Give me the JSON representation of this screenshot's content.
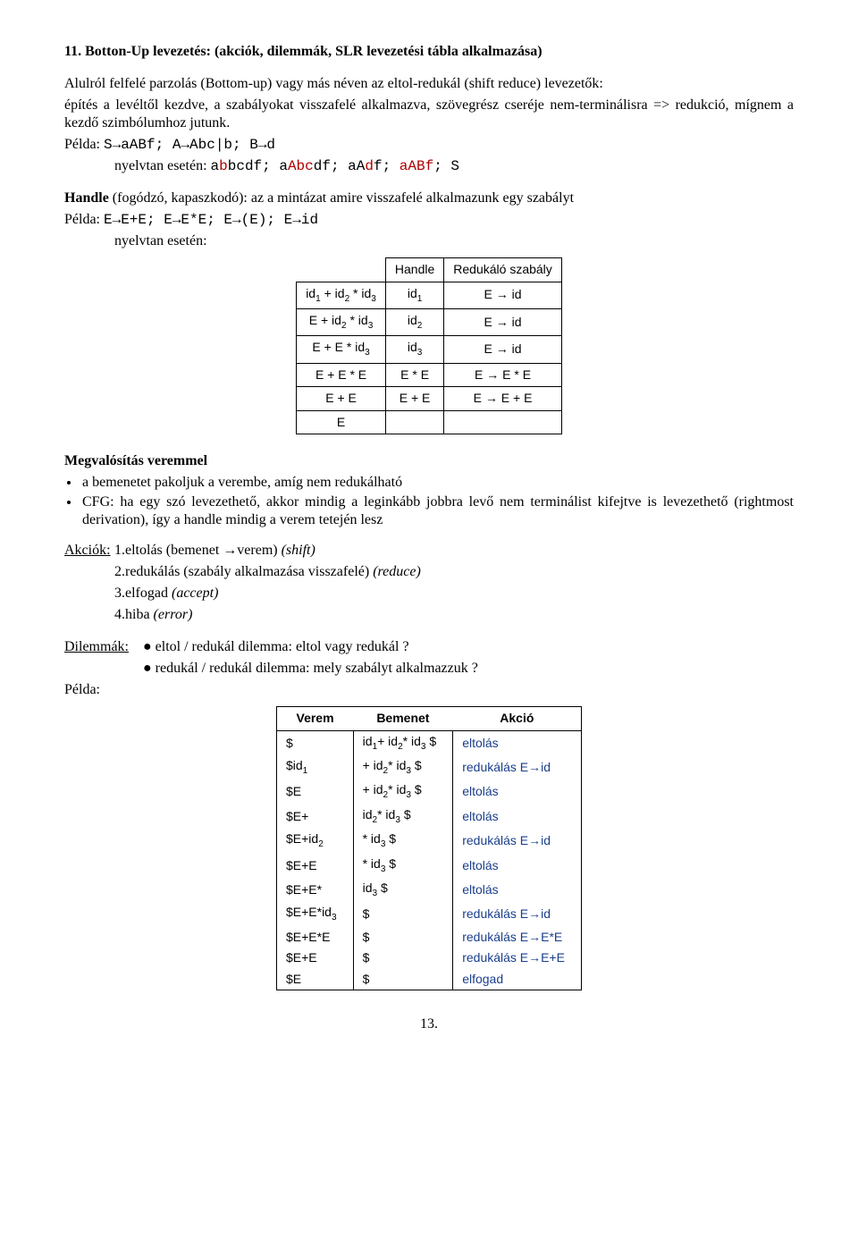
{
  "h1": "11. Botton-Up levezetés: (akciók, dilemmák, SLR levezetési tábla alkalmazása)",
  "p1": "Alulról felfelé parzolás (Bottom-up) vagy más néven az eltol-redukál (shift reduce) levezetők:",
  "p2": "építés a levéltől kezdve, a szabályokat visszafelé alkalmazva, szövegrész cseréje nem-terminálisra => redukció, mígnem a kezdő szimbólumhoz jutunk.",
  "ex1_l": "Példa: ",
  "ex1_r": "S→aABf; A→Abc|b; B→d",
  "ex1_b_l": "nyelvtan esetén: ",
  "ex1_b_r": "abbcdf; aAbcdf; aAdf; aABf; S",
  "handle_b": "Handle",
  "handle_rest": " (fogódzó, kapaszkodó): az a mintázat amire visszafelé alkalmazunk egy szabályt",
  "ex2_l": "Példa: ",
  "ex2_r": "E→E+E; E→E*E; E→(E); E→id",
  "ex2_b": "nyelvtan esetén:",
  "t1": {
    "h2": "Handle",
    "h3": "Redukáló szabály",
    "rows": [
      {
        "a": "id₁ + id₂ * id₃",
        "b": "id₁",
        "c": "E → id"
      },
      {
        "a": "E + id₂ * id₃",
        "b": "id₂",
        "c": "E → id"
      },
      {
        "a": "E + E * id₃",
        "b": "id₃",
        "c": "E → id"
      },
      {
        "a": "E + E * E",
        "b": "E * E",
        "c": "E → E * E"
      },
      {
        "a": "E + E",
        "b": "E + E",
        "c": "E → E + E"
      },
      {
        "a": "E",
        "b": "",
        "c": ""
      }
    ]
  },
  "impl_h": "Megvalósítás veremmel",
  "impl_li1": "a bemenetet pakoljuk a verembe, amíg nem redukálható",
  "impl_li2": "CFG: ha egy szó levezethető, akkor mindig a leginkább jobbra levő nem terminálist kifejtve is levezethető (rightmost derivation), így a handle mindig a verem tetején lesz",
  "act_l": "Akciók:",
  "act_1a": "1.eltolás (bemenet →verem) ",
  "act_1b": "(shift)",
  "act_2a": "2.redukálás (szabály alkalmazása visszafelé) ",
  "act_2b": "(reduce)",
  "act_3a": "3.elfogad ",
  "act_3b": "(accept)",
  "act_4a": "4.hiba ",
  "act_4b": "(error)",
  "dil_l": "Dilemmák:",
  "dil_1": "● eltol / redukál dilemma: eltol vagy redukál ?",
  "dil_2": "● redukál / redukál dilemma: mely szabályt alkalmazzuk ?",
  "pelda": "Példa:",
  "t2": {
    "h1": "Verem",
    "h2": "Bemenet",
    "h3": "Akció",
    "rows": [
      {
        "a": "$",
        "b": "id₁+ id₂* id₃ $",
        "c": "eltolás"
      },
      {
        "a": "$id₁",
        "b": "+ id₂* id₃ $",
        "c": "redukálás E→id"
      },
      {
        "a": "$E",
        "b": "+ id₂* id₃ $",
        "c": "eltolás"
      },
      {
        "a": "$E+",
        "b": "id₂* id₃ $",
        "c": "eltolás"
      },
      {
        "a": "$E+id₂",
        "b": "* id₃ $",
        "c": "redukálás E→id"
      },
      {
        "a": "$E+E",
        "b": "* id₃ $",
        "c": "eltolás"
      },
      {
        "a": "$E+E*",
        "b": "id₃ $",
        "c": "eltolás"
      },
      {
        "a": "$E+E*id₃",
        "b": "$",
        "c": "redukálás E→id"
      },
      {
        "a": "$E+E*E",
        "b": "$",
        "c": "redukálás E→E*E"
      },
      {
        "a": "$E+E",
        "b": "$",
        "c": "redukálás E→E+E"
      },
      {
        "a": "$E",
        "b": "$",
        "c": "elfogad"
      }
    ]
  },
  "pagenum": "13."
}
